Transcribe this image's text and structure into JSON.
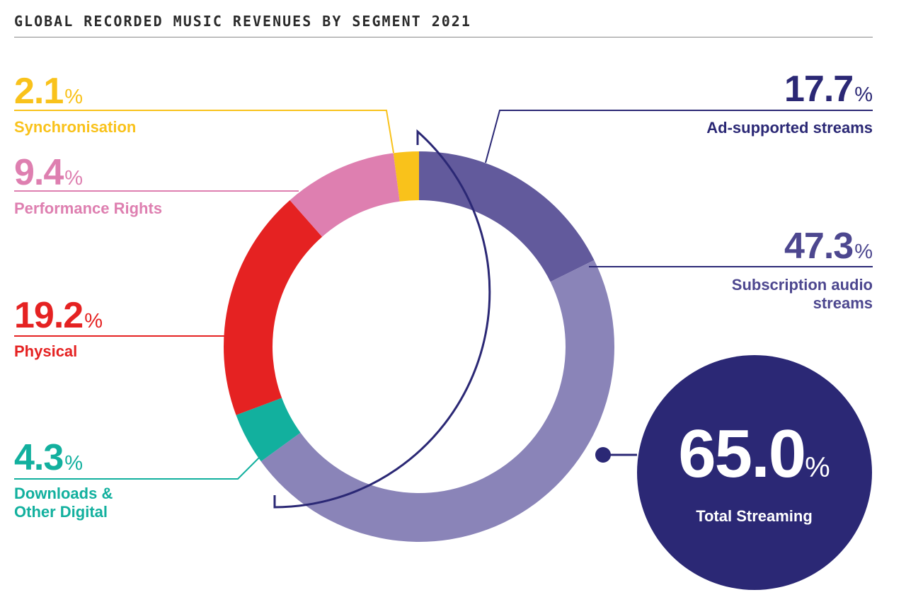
{
  "title": "GLOBAL RECORDED MUSIC REVENUES BY SEGMENT 2021",
  "percent_sign": "%",
  "colors": {
    "synchronisation": "#f9c21b",
    "performance_rights": "#de7fb0",
    "physical": "#e52222",
    "downloads": "#12b09e",
    "ad_supported": "#625a9c",
    "subscription": "#8a84b8",
    "navy": "#2b2875"
  },
  "chart_data": {
    "type": "pie",
    "title": "GLOBAL RECORDED MUSIC REVENUES BY SEGMENT 2021",
    "segments": [
      {
        "label": "Ad-supported streams",
        "value": 17.7,
        "display": "17.7",
        "color": "#625a9c"
      },
      {
        "label": "Subscription audio streams",
        "value": 47.3,
        "display": "47.3",
        "color": "#8a84b8"
      },
      {
        "label": "Downloads & Other Digital",
        "value": 4.3,
        "display": "4.3",
        "color": "#12b09e"
      },
      {
        "label": "Physical",
        "value": 19.2,
        "display": "19.2",
        "color": "#e52222"
      },
      {
        "label": "Performance Rights",
        "value": 9.4,
        "display": "9.4",
        "color": "#de7fb0"
      },
      {
        "label": "Synchronisation",
        "value": 2.1,
        "display": "2.1",
        "color": "#f9c21b"
      }
    ],
    "total_streaming": {
      "label": "Total Streaming",
      "value": 65.0,
      "display": "65.0"
    }
  }
}
